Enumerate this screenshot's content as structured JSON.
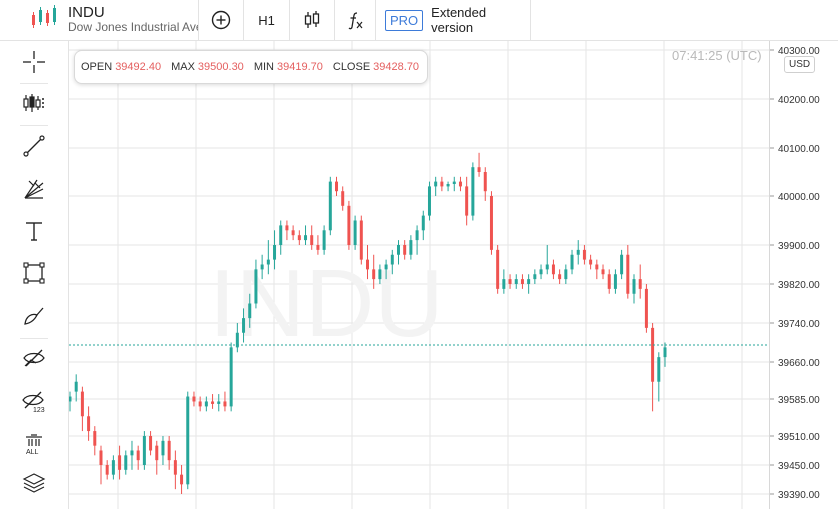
{
  "header": {
    "symbol": "INDU",
    "name": "Dow Jones Industrial Ave",
    "timeframe": "H1",
    "pro_badge": "PRO",
    "extended_label": "Extended version"
  },
  "toolbar_icons": [
    "add-indicator-icon",
    "candlestick-type-icon",
    "function-icon"
  ],
  "sidebar_tools": [
    "crosshair-icon",
    "candles-settings-icon",
    "trend-line-icon",
    "fibonacci-fan-icon",
    "text-icon",
    "rectangle-icon",
    "brush-icon",
    "hide-drawings-icon",
    "hide-indicators-icon",
    "delete-all-icon",
    "layers-icon"
  ],
  "ohlc": {
    "open_label": "OPEN",
    "open": "39492.40",
    "max_label": "MAX",
    "max": "39500.30",
    "min_label": "MIN",
    "min": "39419.70",
    "close_label": "CLOSE",
    "close": "39428.70"
  },
  "clock": "07:41:25 (UTC)",
  "currency": "USD",
  "colors": {
    "up": "#26a69a",
    "down": "#ef5350",
    "accent": "#3d7bd9",
    "current_line": "#26a69a"
  },
  "chart_data": {
    "type": "candlestick",
    "watermark": "INDU",
    "y_ticks": [
      "40300.00",
      "40200.00",
      "40100.00",
      "40000.00",
      "39900.00",
      "39820.00",
      "39740.00",
      "39660.00",
      "39585.00",
      "39510.00",
      "39450.00",
      "39390.00"
    ],
    "ylim": [
      39370,
      40310
    ],
    "current_price": 39695,
    "candles": [
      [
        39580,
        39600,
        39560,
        39590
      ],
      [
        39600,
        39635,
        39580,
        39620
      ],
      [
        39600,
        39610,
        39520,
        39550
      ],
      [
        39550,
        39570,
        39500,
        39520
      ],
      [
        39520,
        39530,
        39470,
        39490
      ],
      [
        39480,
        39490,
        39410,
        39450
      ],
      [
        39450,
        39460,
        39420,
        39430
      ],
      [
        39430,
        39470,
        39420,
        39460
      ],
      [
        39470,
        39490,
        39420,
        39440
      ],
      [
        39440,
        39480,
        39430,
        39470
      ],
      [
        39470,
        39500,
        39440,
        39480
      ],
      [
        39480,
        39490,
        39440,
        39460
      ],
      [
        39450,
        39520,
        39440,
        39510
      ],
      [
        39510,
        39520,
        39470,
        39480
      ],
      [
        39490,
        39500,
        39430,
        39460
      ],
      [
        39470,
        39510,
        39450,
        39500
      ],
      [
        39500,
        39510,
        39440,
        39460
      ],
      [
        39460,
        39480,
        39400,
        39430
      ],
      [
        39430,
        39450,
        39390,
        39410
      ],
      [
        39410,
        39600,
        39400,
        39590
      ],
      [
        39590,
        39600,
        39570,
        39580
      ],
      [
        39580,
        39590,
        39560,
        39570
      ],
      [
        39570,
        39590,
        39560,
        39580
      ],
      [
        39580,
        39595,
        39565,
        39575
      ],
      [
        39575,
        39595,
        39560,
        39580
      ],
      [
        39580,
        39600,
        39560,
        39570
      ],
      [
        39570,
        39700,
        39560,
        39690
      ],
      [
        39690,
        39740,
        39680,
        39720
      ],
      [
        39720,
        39770,
        39700,
        39750
      ],
      [
        39750,
        39800,
        39730,
        39780
      ],
      [
        39780,
        39870,
        39770,
        39850
      ],
      [
        39850,
        39880,
        39830,
        39860
      ],
      [
        39860,
        39910,
        39840,
        39870
      ],
      [
        39870,
        39930,
        39850,
        39900
      ],
      [
        39900,
        39950,
        39880,
        39940
      ],
      [
        39940,
        39950,
        39910,
        39930
      ],
      [
        39930,
        39940,
        39910,
        39920
      ],
      [
        39920,
        39930,
        39900,
        39910
      ],
      [
        39910,
        39940,
        39900,
        39920
      ],
      [
        39920,
        39940,
        39890,
        39900
      ],
      [
        39900,
        39920,
        39880,
        39890
      ],
      [
        39890,
        39940,
        39880,
        39930
      ],
      [
        39930,
        40040,
        39920,
        40030
      ],
      [
        40030,
        40040,
        40000,
        40010
      ],
      [
        40010,
        40020,
        39970,
        39980
      ],
      [
        39980,
        39990,
        39890,
        39900
      ],
      [
        39900,
        39960,
        39890,
        39950
      ],
      [
        39950,
        39960,
        39860,
        39870
      ],
      [
        39870,
        39900,
        39830,
        39850
      ],
      [
        39850,
        39880,
        39810,
        39830
      ],
      [
        39830,
        39860,
        39820,
        39850
      ],
      [
        39850,
        39870,
        39830,
        39860
      ],
      [
        39860,
        39890,
        39840,
        39880
      ],
      [
        39880,
        39910,
        39860,
        39900
      ],
      [
        39900,
        39910,
        39870,
        39880
      ],
      [
        39880,
        39920,
        39870,
        39910
      ],
      [
        39910,
        39940,
        39880,
        39930
      ],
      [
        39930,
        39970,
        39910,
        39960
      ],
      [
        39960,
        40030,
        39950,
        40020
      ],
      [
        40020,
        40040,
        40000,
        40030
      ],
      [
        40030,
        40040,
        40010,
        40020
      ],
      [
        40020,
        40030,
        40010,
        40025
      ],
      [
        40025,
        40040,
        40010,
        40030
      ],
      [
        40030,
        40040,
        40010,
        40020
      ],
      [
        40020,
        40040,
        39940,
        39960
      ],
      [
        39960,
        40070,
        39950,
        40060
      ],
      [
        40060,
        40090,
        40040,
        40050
      ],
      [
        40050,
        40060,
        39990,
        40010
      ],
      [
        40000,
        40010,
        39880,
        39890
      ],
      [
        39890,
        39900,
        39800,
        39810
      ],
      [
        39810,
        39850,
        39800,
        39830
      ],
      [
        39830,
        39840,
        39810,
        39820
      ],
      [
        39820,
        39840,
        39810,
        39830
      ],
      [
        39830,
        39840,
        39810,
        39820
      ],
      [
        39820,
        39840,
        39800,
        39830
      ],
      [
        39830,
        39850,
        39820,
        39840
      ],
      [
        39840,
        39860,
        39830,
        39850
      ],
      [
        39850,
        39900,
        39840,
        39860
      ],
      [
        39860,
        39870,
        39830,
        39840
      ],
      [
        39840,
        39850,
        39820,
        39830
      ],
      [
        39830,
        39860,
        39820,
        39850
      ],
      [
        39850,
        39890,
        39840,
        39880
      ],
      [
        39880,
        39910,
        39860,
        39890
      ],
      [
        39890,
        39900,
        39860,
        39870
      ],
      [
        39870,
        39880,
        39850,
        39860
      ],
      [
        39860,
        39870,
        39830,
        39850
      ],
      [
        39850,
        39860,
        39830,
        39840
      ],
      [
        39840,
        39850,
        39800,
        39810
      ],
      [
        39810,
        39850,
        39800,
        39840
      ],
      [
        39840,
        39890,
        39830,
        39880
      ],
      [
        39880,
        39900,
        39790,
        39800
      ],
      [
        39800,
        39840,
        39780,
        39830
      ],
      [
        39830,
        39860,
        39790,
        39810
      ],
      [
        39810,
        39820,
        39720,
        39730
      ],
      [
        39730,
        39740,
        39560,
        39620
      ],
      [
        39620,
        39680,
        39580,
        39670
      ],
      [
        39670,
        39700,
        39650,
        39690
      ]
    ]
  }
}
